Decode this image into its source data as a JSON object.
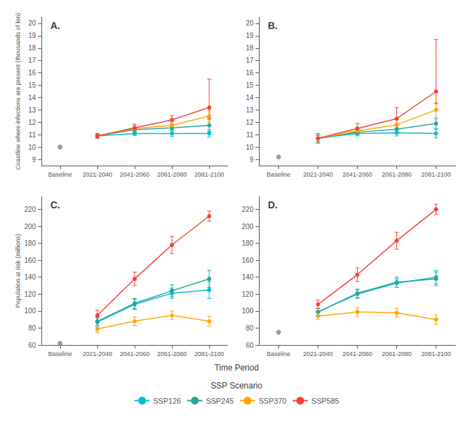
{
  "xlabel": "Time Period",
  "legend_title": "SSP Scenario",
  "legend": "bottom",
  "chart_data": [
    {
      "type": "line",
      "title": "A.",
      "ylabel": "Coastline where infections are present (thousands of km)",
      "categories": [
        "Baseline",
        "2021-2040",
        "2041-2060",
        "2061-2080",
        "2081-2100"
      ],
      "ylim": [
        8.5,
        20.5
      ],
      "yticks": [
        9,
        10,
        11,
        12,
        13,
        14,
        15,
        16,
        17,
        18,
        19,
        20
      ],
      "grid": false,
      "marker": "circle",
      "series": [
        {
          "type": "scatter",
          "color": "#808080",
          "values": [
            10.0,
            null,
            null,
            null,
            null
          ]
        },
        {
          "name": "SSP126",
          "color": "#00BCD4",
          "values": [
            null,
            10.9,
            11.1,
            11.1,
            11.1
          ],
          "err_lo": [
            null,
            0.15,
            0.15,
            0.25,
            0.3
          ],
          "err_hi": [
            null,
            0.15,
            0.15,
            0.25,
            0.3
          ]
        },
        {
          "name": "SSP245",
          "color": "#26A69A",
          "values": [
            null,
            10.9,
            11.4,
            11.55,
            11.75
          ],
          "err_lo": [
            null,
            0.15,
            0.2,
            0.2,
            0.5
          ],
          "err_hi": [
            null,
            0.15,
            0.2,
            0.2,
            0.5
          ]
        },
        {
          "name": "SSP370",
          "color": "#FFA500",
          "values": [
            null,
            10.9,
            11.5,
            11.75,
            12.5
          ],
          "err_lo": [
            null,
            0.15,
            0.25,
            0.3,
            0.5
          ],
          "err_hi": [
            null,
            0.15,
            0.25,
            0.3,
            0.5
          ]
        },
        {
          "name": "SSP585",
          "color": "#F44336",
          "values": [
            null,
            10.9,
            11.55,
            12.2,
            13.2
          ],
          "err_lo": [
            null,
            0.2,
            0.3,
            0.35,
            0.9
          ],
          "err_hi": [
            null,
            0.2,
            0.3,
            0.35,
            2.3
          ]
        }
      ]
    },
    {
      "type": "line",
      "title": "B.",
      "categories": [
        "Baseline",
        "2021-2040",
        "2041-2060",
        "2061-2080",
        "2081-2100"
      ],
      "ylim": [
        8.5,
        20.5
      ],
      "yticks": [
        9,
        10,
        11,
        12,
        13,
        14,
        15,
        16,
        17,
        18,
        19,
        20
      ],
      "grid": false,
      "marker": "circle",
      "series": [
        {
          "type": "scatter",
          "color": "#808080",
          "values": [
            9.2,
            null,
            null,
            null,
            null
          ]
        },
        {
          "name": "SSP126",
          "color": "#00BCD4",
          "values": [
            null,
            10.7,
            11.1,
            11.15,
            11.1
          ],
          "err_lo": [
            null,
            0.3,
            0.2,
            0.25,
            0.35
          ],
          "err_hi": [
            null,
            0.3,
            0.2,
            0.25,
            0.35
          ]
        },
        {
          "name": "SSP245",
          "color": "#26A69A",
          "values": [
            null,
            10.7,
            11.2,
            11.45,
            11.9
          ],
          "err_lo": [
            null,
            0.25,
            0.2,
            0.25,
            0.4
          ],
          "err_hi": [
            null,
            0.25,
            0.2,
            0.25,
            0.4
          ]
        },
        {
          "name": "SSP370",
          "color": "#FFA500",
          "values": [
            null,
            10.7,
            11.3,
            11.8,
            13.0
          ],
          "err_lo": [
            null,
            0.25,
            0.3,
            0.4,
            0.6
          ],
          "err_hi": [
            null,
            0.25,
            0.3,
            0.4,
            0.6
          ]
        },
        {
          "name": "SSP585",
          "color": "#F44336",
          "values": [
            null,
            10.7,
            11.5,
            12.3,
            14.5
          ],
          "err_lo": [
            null,
            0.4,
            0.4,
            0.9,
            1.0
          ],
          "err_hi": [
            null,
            0.4,
            0.4,
            0.9,
            4.2
          ]
        }
      ]
    },
    {
      "type": "line",
      "title": "C.",
      "ylabel": "Population at risk (millions)",
      "categories": [
        "Baseline",
        "2021-2040",
        "2041-2060",
        "2061-2080",
        "2081-2100"
      ],
      "ylim": [
        60,
        235
      ],
      "yticks": [
        60,
        80,
        100,
        120,
        140,
        160,
        180,
        200,
        220
      ],
      "grid": false,
      "marker": "circle",
      "series": [
        {
          "type": "scatter",
          "color": "#808080",
          "values": [
            62.0,
            null,
            null,
            null,
            null
          ]
        },
        {
          "name": "SSP126",
          "color": "#00BCD4",
          "values": [
            null,
            87.0,
            108.0,
            121.0,
            125.0
          ],
          "err_lo": [
            null,
            5.0,
            6.0,
            6.0,
            10.0
          ],
          "err_hi": [
            null,
            5.0,
            6.0,
            6.0,
            10.0
          ]
        },
        {
          "name": "SSP245",
          "color": "#26A69A",
          "values": [
            null,
            88.0,
            109.0,
            124.0,
            138.0
          ],
          "err_lo": [
            null,
            5.0,
            6.0,
            7.0,
            10.0
          ],
          "err_hi": [
            null,
            5.0,
            6.0,
            7.0,
            10.0
          ]
        },
        {
          "name": "SSP370",
          "color": "#FFA500",
          "values": [
            null,
            79.0,
            88.0,
            95.0,
            88.0
          ],
          "err_lo": [
            null,
            4.0,
            5.0,
            5.0,
            6.0
          ],
          "err_hi": [
            null,
            4.0,
            5.0,
            5.0,
            6.0
          ]
        },
        {
          "name": "SSP585",
          "color": "#F44336",
          "values": [
            null,
            95.0,
            138.0,
            178.0,
            212.0
          ],
          "err_lo": [
            null,
            6.0,
            8.0,
            10.0,
            6.0
          ],
          "err_hi": [
            null,
            6.0,
            8.0,
            10.0,
            6.0
          ]
        }
      ]
    },
    {
      "type": "line",
      "title": "D.",
      "categories": [
        "Baseline",
        "2021-2040",
        "2041-2060",
        "2061-2080",
        "2081-2100"
      ],
      "ylim": [
        60,
        235
      ],
      "yticks": [
        60,
        80,
        100,
        120,
        140,
        160,
        180,
        200,
        220
      ],
      "grid": false,
      "marker": "circle",
      "series": [
        {
          "type": "scatter",
          "color": "#808080",
          "values": [
            75.0,
            null,
            null,
            null,
            null
          ]
        },
        {
          "name": "SSP126",
          "color": "#00BCD4",
          "values": [
            null,
            99.0,
            120.0,
            133.0,
            140.0
          ],
          "err_lo": [
            null,
            4.0,
            5.0,
            5.0,
            8.0
          ],
          "err_hi": [
            null,
            4.0,
            5.0,
            5.0,
            8.0
          ]
        },
        {
          "name": "SSP245",
          "color": "#26A69A",
          "values": [
            null,
            99.0,
            121.0,
            134.0,
            138.0
          ],
          "err_lo": [
            null,
            4.0,
            5.0,
            6.0,
            8.0
          ],
          "err_hi": [
            null,
            4.0,
            5.0,
            6.0,
            8.0
          ]
        },
        {
          "name": "SSP370",
          "color": "#FFA500",
          "values": [
            null,
            94.0,
            99.0,
            98.0,
            90.0
          ],
          "err_lo": [
            null,
            4.0,
            5.0,
            5.0,
            6.0
          ],
          "err_hi": [
            null,
            4.0,
            5.0,
            5.0,
            6.0
          ]
        },
        {
          "name": "SSP585",
          "color": "#F44336",
          "values": [
            null,
            108.0,
            143.0,
            183.0,
            220.0
          ],
          "err_lo": [
            null,
            5.0,
            8.0,
            10.0,
            6.0
          ],
          "err_hi": [
            null,
            5.0,
            8.0,
            10.0,
            6.0
          ]
        }
      ]
    }
  ]
}
